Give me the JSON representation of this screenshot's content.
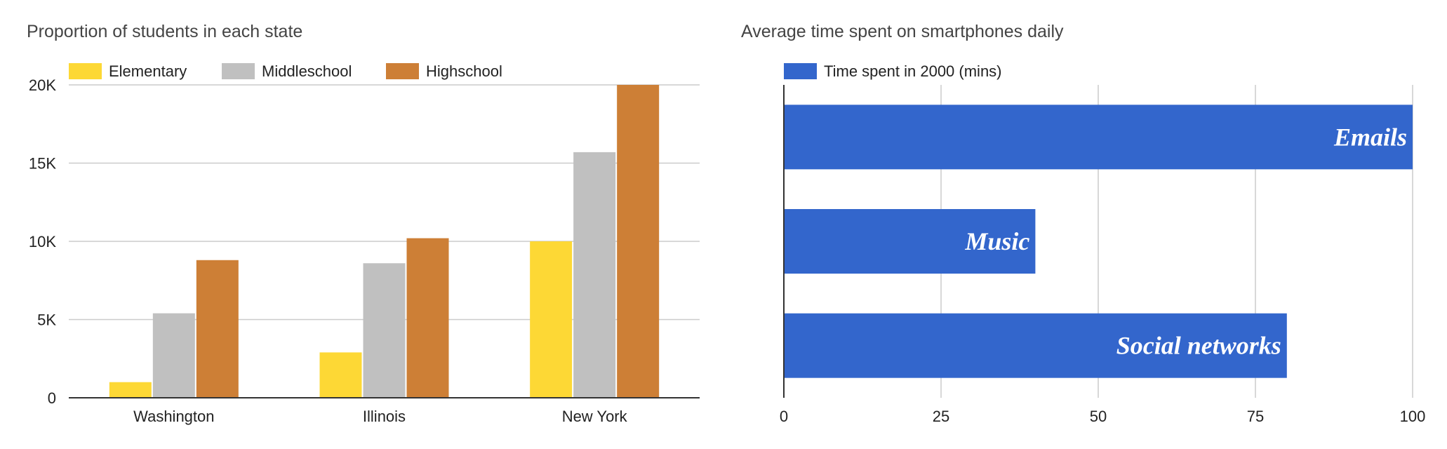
{
  "chart_data": [
    {
      "type": "bar",
      "orientation": "vertical",
      "title": "Proportion of students in each state",
      "categories": [
        "Washington",
        "Illinois",
        "New York"
      ],
      "series": [
        {
          "name": "Elementary",
          "color": "#fdd835",
          "values": [
            1000,
            2900,
            10000
          ]
        },
        {
          "name": "Middleschool",
          "color": "#c0c0c0",
          "values": [
            5400,
            8600,
            15700
          ]
        },
        {
          "name": "Highschool",
          "color": "#cd7f36",
          "values": [
            8800,
            10200,
            20000
          ]
        }
      ],
      "ylim": [
        0,
        20000
      ],
      "yticks": [
        {
          "value": 0,
          "label": "0"
        },
        {
          "value": 5000,
          "label": "5K"
        },
        {
          "value": 10000,
          "label": "10K"
        },
        {
          "value": 15000,
          "label": "15K"
        },
        {
          "value": 20000,
          "label": "20K"
        }
      ],
      "grid": true,
      "legend_position": "top"
    },
    {
      "type": "bar",
      "orientation": "horizontal",
      "title": "Average time spent on smartphones daily",
      "categories": [
        "Emails",
        "Music",
        "Social networks"
      ],
      "series": [
        {
          "name": "Time spent in 2000 (mins)",
          "color": "#3366cc",
          "values": [
            100,
            40,
            80
          ]
        }
      ],
      "xlim": [
        0,
        100
      ],
      "xticks": [
        {
          "value": 0,
          "label": "0"
        },
        {
          "value": 25,
          "label": "25"
        },
        {
          "value": 50,
          "label": "50"
        },
        {
          "value": 75,
          "label": "75"
        },
        {
          "value": 100,
          "label": "100"
        }
      ],
      "grid": true,
      "legend_position": "top",
      "labels_inside_bars": true
    }
  ]
}
